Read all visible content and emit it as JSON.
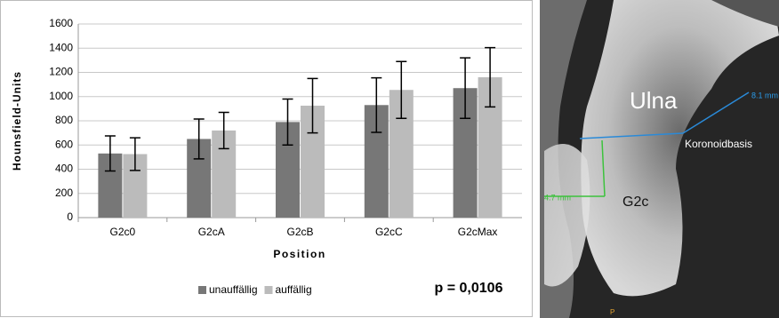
{
  "chart_data": {
    "type": "bar",
    "y_label": "Hounsfield-Units",
    "x_label": "Position",
    "categories": [
      "G2c0",
      "G2cA",
      "G2cB",
      "G2cC",
      "G2cMax"
    ],
    "series": [
      {
        "name": "unauffällig",
        "color": "#777777",
        "values": [
          530,
          650,
          790,
          930,
          1070
        ],
        "errors": [
          145,
          165,
          190,
          225,
          250
        ]
      },
      {
        "name": "auffällig",
        "color": "#bbbbbb",
        "values": [
          525,
          720,
          925,
          1055,
          1160
        ],
        "errors": [
          135,
          150,
          225,
          235,
          245
        ]
      }
    ],
    "ylim": [
      0,
      1600
    ],
    "yticks": [
      0,
      200,
      400,
      600,
      800,
      1000,
      1200,
      1400,
      1600
    ],
    "grid": true,
    "legend": "bottom",
    "annotation": "p = 0,0106"
  },
  "image": {
    "labels": {
      "ulna": "Ulna",
      "base": "Koronoidbasis",
      "g2c": "G2c",
      "m1": "8.1 mm",
      "m2": "4.7 mm",
      "p": "P"
    }
  }
}
